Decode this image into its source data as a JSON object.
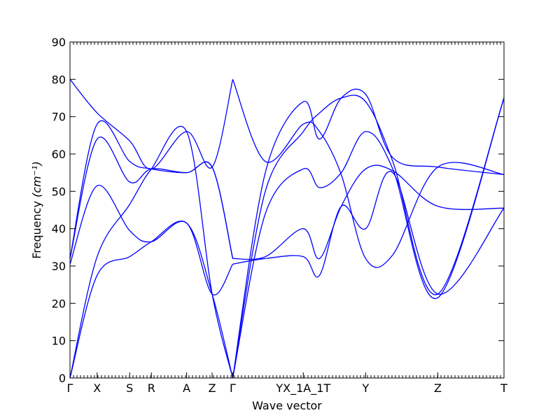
{
  "chart_data": {
    "type": "line",
    "title": "",
    "xlabel": "Wave vector",
    "ylabel": "Frequency",
    "ylabel_unit": "(cm⁻¹)",
    "ylim": [
      0,
      90
    ],
    "yticks": [
      0,
      10,
      20,
      30,
      40,
      50,
      60,
      70,
      80,
      90
    ],
    "xlim": [
      0,
      8
    ],
    "line_color": "#0000ff",
    "legend": "none",
    "grid": false,
    "high_symmetry_points": [
      {
        "label": "Γ",
        "x": 0
      },
      {
        "label": "X",
        "x": 0.5
      },
      {
        "label": "S",
        "x": 1.1
      },
      {
        "label": "R",
        "x": 1.5
      },
      {
        "label": "A",
        "x": 2.15
      },
      {
        "label": "Z",
        "x": 2.62
      },
      {
        "label": "Γ",
        "x": 3.0
      },
      {
        "label": "YX_1A_1T",
        "x": 4.3
      },
      {
        "label": "Y",
        "x": 5.45
      },
      {
        "label": "Z",
        "x": 6.78
      },
      {
        "label": "T",
        "x": 8.0
      }
    ],
    "series": [
      {
        "x": [
          0,
          0.5,
          1.1,
          1.5,
          2.15,
          2.62,
          3.0
        ],
        "y": [
          0,
          27.5,
          32.5,
          36.5,
          41.5,
          22.5,
          0
        ]
      },
      {
        "x": [
          0,
          0.5,
          1.1,
          1.5,
          2.15,
          2.62,
          3.0
        ],
        "y": [
          0,
          32.5,
          46.5,
          56,
          66,
          22.5,
          0
        ]
      },
      {
        "x": [
          0,
          0.5,
          1.1,
          1.5,
          2.15,
          2.62,
          3.0
        ],
        "y": [
          30.5,
          51.5,
          39.5,
          36.5,
          41.5,
          22.5,
          30.5
        ]
      },
      {
        "x": [
          0,
          0.5,
          1.1,
          1.5,
          2.15,
          2.62,
          3.0
        ],
        "y": [
          32,
          64,
          52.5,
          56,
          55,
          56.5,
          32
        ]
      },
      {
        "x": [
          0,
          0.5,
          1.1,
          1.5,
          2.15,
          2.62,
          3.0
        ],
        "y": [
          32,
          68,
          58,
          56,
          55,
          56.5,
          32
        ]
      },
      {
        "x": [
          0,
          0.5,
          1.1,
          1.5,
          2.15,
          2.62,
          3.0
        ],
        "y": [
          80,
          71,
          63.5,
          56,
          66,
          56.5,
          80
        ]
      },
      {
        "x": [
          3.0,
          3.6,
          4.3,
          4.6,
          5.0,
          5.45,
          5.95,
          6.78,
          8.0
        ],
        "y": [
          0,
          55,
          74,
          64,
          75,
          76,
          59,
          56.5,
          54.5
        ]
      },
      {
        "x": [
          3.0,
          3.6,
          4.3,
          4.6,
          5.0,
          5.45,
          5.95,
          6.78,
          8.0
        ],
        "y": [
          0,
          50,
          66,
          71,
          75,
          74,
          58,
          22.5,
          75
        ]
      },
      {
        "x": [
          3.0,
          3.6,
          4.3,
          4.6,
          5.0,
          5.45,
          5.95,
          6.78,
          8.0
        ],
        "y": [
          0,
          44,
          56,
          51,
          55,
          66,
          56,
          21.5,
          75
        ]
      },
      {
        "x": [
          3.0,
          3.6,
          4.3,
          4.6,
          5.0,
          5.45,
          5.95,
          6.78,
          8.0
        ],
        "y": [
          30.5,
          32,
          32.5,
          27.5,
          46,
          40,
          55,
          22.5,
          45.5
        ]
      },
      {
        "x": [
          3.0,
          3.6,
          4.3,
          4.6,
          5.0,
          5.45,
          5.95,
          6.78,
          8.0
        ],
        "y": [
          32,
          32.5,
          40,
          32,
          46,
          56,
          55.5,
          46,
          45.5
        ]
      },
      {
        "x": [
          3.0,
          3.6,
          4.3,
          4.6,
          5.0,
          5.45,
          5.95,
          6.78,
          8.0
        ],
        "y": [
          80,
          58,
          68,
          66,
          54.5,
          32,
          33,
          56.5,
          54.5
        ]
      }
    ]
  }
}
